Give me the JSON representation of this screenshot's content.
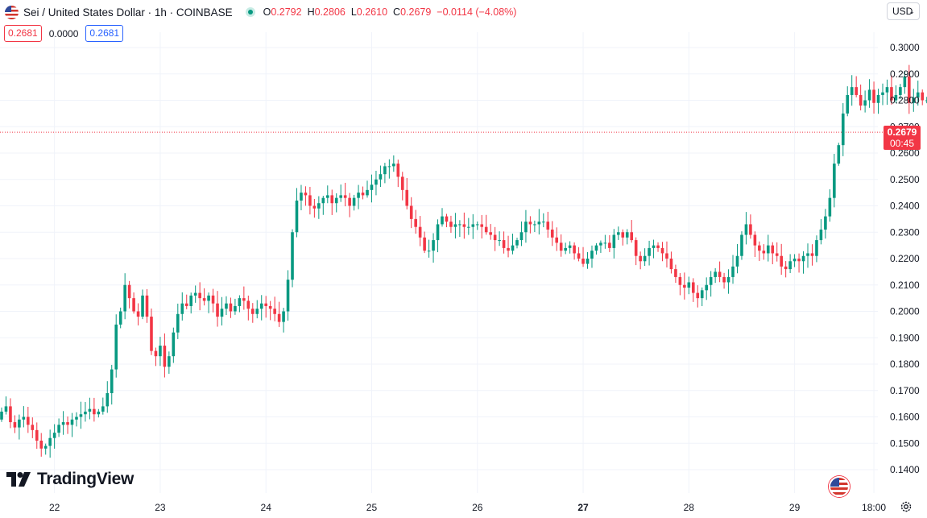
{
  "header": {
    "symbol_title": "Sei / United States Dollar · 1h · COINBASE",
    "ohlc": {
      "o_label": "O",
      "o": "0.2792",
      "h_label": "H",
      "h": "0.2806",
      "l_label": "L",
      "l": "0.2610",
      "c_label": "C",
      "c": "0.2679"
    },
    "change": "−0.0114 (−4.08%)",
    "sell_price": "0.2681",
    "spread": "0.0000",
    "buy_price": "0.2681",
    "currency": "USD",
    "currency_chevron": "⌄",
    "icons": {
      "flag": "us-flag-icon",
      "live": "market-open-icon",
      "settings": "gear-icon"
    }
  },
  "price_tag": {
    "price": "0.2679",
    "countdown": "00:45"
  },
  "branding": {
    "name": "TradingView"
  },
  "colors": {
    "up": "#089981",
    "down": "#f23645",
    "grid": "#f0f3fa",
    "axis_text": "#131722",
    "last_price_line": "#f23645"
  },
  "chart_data": {
    "type": "candlestick",
    "interval": "1h",
    "exchange": "COINBASE",
    "ylim": [
      0.134,
      0.304
    ],
    "y_ticks": [
      0.14,
      0.15,
      0.16,
      0.17,
      0.18,
      0.19,
      0.2,
      0.21,
      0.22,
      0.23,
      0.24,
      0.25,
      0.26,
      0.27,
      0.28,
      0.29,
      0.3
    ],
    "y_tick_labels": [
      "0.1400",
      "0.1500",
      "0.1600",
      "0.1700",
      "0.1800",
      "0.1900",
      "0.2000",
      "0.2100",
      "0.2200",
      "0.2300",
      "0.2400",
      "0.2500",
      "0.2600",
      "0.2700",
      "0.2800",
      "0.2900",
      "0.3000"
    ],
    "x_ticks": [
      {
        "label": "22",
        "hours_from_start": 12,
        "bold": false
      },
      {
        "label": "23",
        "hours_from_start": 36,
        "bold": false
      },
      {
        "label": "24",
        "hours_from_start": 60,
        "bold": false
      },
      {
        "label": "25",
        "hours_from_start": 84,
        "bold": false
      },
      {
        "label": "26",
        "hours_from_start": 108,
        "bold": false
      },
      {
        "label": "27",
        "hours_from_start": 132,
        "bold": true
      },
      {
        "label": "28",
        "hours_from_start": 156,
        "bold": false
      },
      {
        "label": "29",
        "hours_from_start": 180,
        "bold": false
      },
      {
        "label": "18:00",
        "hours_from_start": 198,
        "bold": false
      }
    ],
    "last_price": 0.2679,
    "closes": [
      0.162,
      0.164,
      0.158,
      0.156,
      0.159,
      0.16,
      0.157,
      0.155,
      0.151,
      0.148,
      0.149,
      0.152,
      0.154,
      0.157,
      0.158,
      0.157,
      0.159,
      0.16,
      0.161,
      0.162,
      0.163,
      0.161,
      0.162,
      0.164,
      0.169,
      0.178,
      0.195,
      0.2,
      0.21,
      0.205,
      0.2,
      0.198,
      0.206,
      0.198,
      0.185,
      0.183,
      0.187,
      0.179,
      0.183,
      0.192,
      0.199,
      0.203,
      0.202,
      0.206,
      0.207,
      0.205,
      0.204,
      0.206,
      0.203,
      0.198,
      0.201,
      0.203,
      0.2,
      0.202,
      0.205,
      0.204,
      0.201,
      0.199,
      0.201,
      0.203,
      0.202,
      0.201,
      0.199,
      0.196,
      0.2,
      0.212,
      0.23,
      0.242,
      0.245,
      0.244,
      0.24,
      0.239,
      0.241,
      0.243,
      0.244,
      0.241,
      0.243,
      0.244,
      0.243,
      0.24,
      0.243,
      0.245,
      0.244,
      0.246,
      0.248,
      0.25,
      0.252,
      0.255,
      0.255,
      0.256,
      0.251,
      0.246,
      0.24,
      0.235,
      0.232,
      0.228,
      0.223,
      0.223,
      0.227,
      0.233,
      0.236,
      0.234,
      0.232,
      0.233,
      0.233,
      0.232,
      0.232,
      0.233,
      0.233,
      0.232,
      0.23,
      0.229,
      0.227,
      0.227,
      0.224,
      0.223,
      0.225,
      0.227,
      0.23,
      0.234,
      0.233,
      0.233,
      0.234,
      0.234,
      0.231,
      0.228,
      0.226,
      0.223,
      0.224,
      0.225,
      0.222,
      0.22,
      0.218,
      0.22,
      0.223,
      0.225,
      0.226,
      0.226,
      0.224,
      0.229,
      0.23,
      0.228,
      0.23,
      0.227,
      0.221,
      0.219,
      0.221,
      0.224,
      0.225,
      0.224,
      0.222,
      0.22,
      0.216,
      0.213,
      0.21,
      0.209,
      0.211,
      0.207,
      0.205,
      0.208,
      0.21,
      0.213,
      0.215,
      0.213,
      0.211,
      0.213,
      0.217,
      0.221,
      0.229,
      0.233,
      0.229,
      0.225,
      0.223,
      0.222,
      0.225,
      0.222,
      0.221,
      0.217,
      0.216,
      0.219,
      0.22,
      0.219,
      0.221,
      0.222,
      0.221,
      0.227,
      0.231,
      0.236,
      0.243,
      0.256,
      0.263,
      0.275,
      0.282,
      0.285,
      0.282,
      0.278,
      0.28,
      0.284,
      0.279,
      0.282,
      0.283,
      0.285,
      0.28,
      0.282,
      0.285,
      0.289,
      0.279,
      0.281,
      0.283,
      0.28,
      0.28,
      0.282,
      0.2679
    ]
  }
}
